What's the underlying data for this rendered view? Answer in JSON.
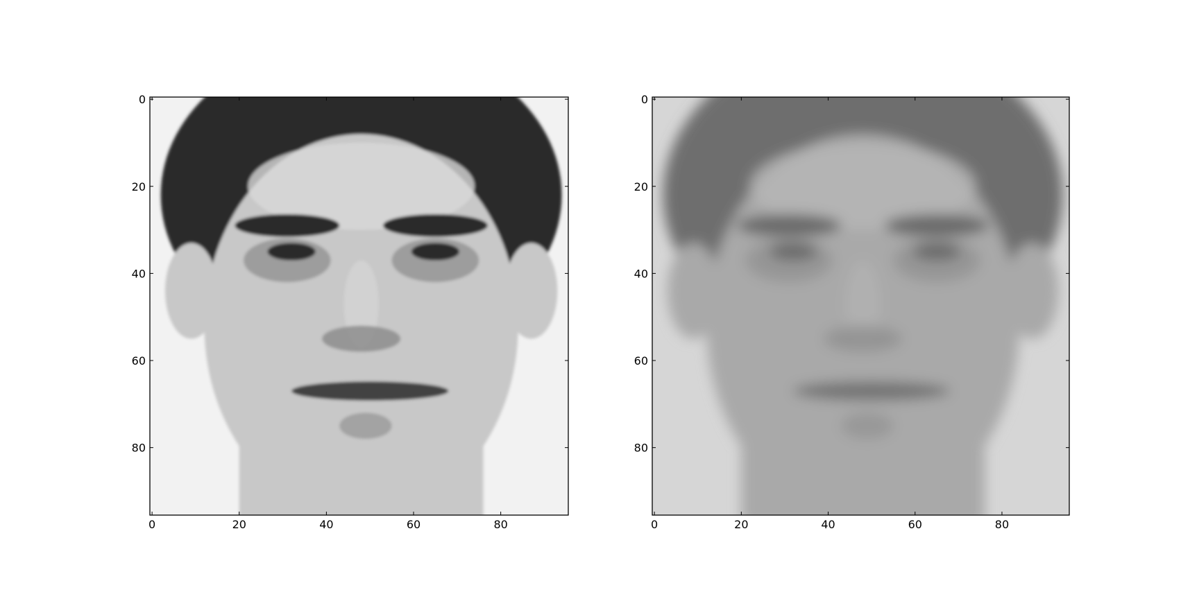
{
  "chart_data": [
    {
      "type": "heatmap",
      "content": "grayscale face image (original)",
      "colormap": "gray",
      "xlim": [
        -0.5,
        95.5
      ],
      "ylim": [
        95.5,
        -0.5
      ],
      "y_inverted": true,
      "grid": false,
      "xticks": [
        0,
        20,
        40,
        60,
        80
      ],
      "yticks": [
        0,
        20,
        40,
        60,
        80
      ],
      "xtick_labels": [
        "0",
        "20",
        "40",
        "60",
        "80"
      ],
      "ytick_labels": [
        "0",
        "20",
        "40",
        "60",
        "80"
      ],
      "image": {
        "background": "#f2f2f2",
        "hair": "#2b2b2b",
        "skin": "#c8c8c8",
        "skin_light": "#d8d8d8",
        "feature_dark": "#2a2a2a",
        "shadow": "#8a8a8a"
      }
    },
    {
      "type": "heatmap",
      "content": "grayscale face reconstruction (blurred)",
      "colormap": "gray",
      "xlim": [
        -0.5,
        95.5
      ],
      "ylim": [
        95.5,
        -0.5
      ],
      "y_inverted": true,
      "grid": false,
      "xticks": [
        0,
        20,
        40,
        60,
        80
      ],
      "yticks": [
        0,
        20,
        40,
        60,
        80
      ],
      "xtick_labels": [
        "0",
        "20",
        "40",
        "60",
        "80"
      ],
      "ytick_labels": [
        "0",
        "20",
        "40",
        "60",
        "80"
      ],
      "image": {
        "background": "#d6d6d6",
        "hair": "#6e6e6e",
        "skin": "#a9a9a9",
        "skin_light": "#b6b6b6",
        "feature_dark": "#6a6a6a",
        "shadow": "#8e8e8e"
      }
    }
  ]
}
